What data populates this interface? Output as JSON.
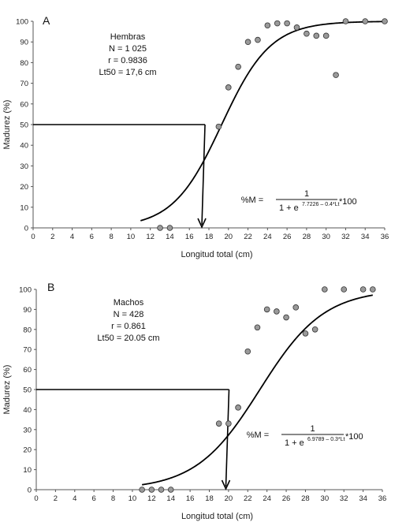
{
  "chart_data": [
    {
      "type": "scatter",
      "panel": "A",
      "xlabel": "Longitud total (cm)",
      "ylabel": "Madurez (%)",
      "xlim": [
        0,
        36
      ],
      "ylim": [
        0,
        100
      ],
      "xticks": [
        0,
        2,
        4,
        6,
        8,
        10,
        12,
        14,
        16,
        18,
        20,
        22,
        24,
        26,
        28,
        30,
        32,
        34,
        36
      ],
      "yticks": [
        0,
        10,
        20,
        30,
        40,
        50,
        60,
        70,
        80,
        90,
        100
      ],
      "stats": [
        "Hembras",
        "N = 1 025",
        "r = 0.9836",
        "Lt50 = 17,6 cm"
      ],
      "formula": {
        "lhs": "%M =",
        "numerator": "1",
        "denominator": "1 + e",
        "exponent": "7.7226 – 0.4*Lt",
        "suffix": "*100"
      },
      "curve": {
        "a": 7.7226,
        "b": 0.4,
        "x_start": 11,
        "x_end": 36
      },
      "lt50": 17.6,
      "points": [
        {
          "x": 13,
          "y": 0
        },
        {
          "x": 14,
          "y": 0
        },
        {
          "x": 19,
          "y": 49
        },
        {
          "x": 20,
          "y": 68
        },
        {
          "x": 21,
          "y": 78
        },
        {
          "x": 22,
          "y": 90
        },
        {
          "x": 23,
          "y": 91
        },
        {
          "x": 24,
          "y": 98
        },
        {
          "x": 25,
          "y": 99
        },
        {
          "x": 26,
          "y": 99
        },
        {
          "x": 27,
          "y": 97
        },
        {
          "x": 28,
          "y": 94
        },
        {
          "x": 29,
          "y": 93
        },
        {
          "x": 30,
          "y": 93
        },
        {
          "x": 31,
          "y": 74
        },
        {
          "x": 32,
          "y": 100
        },
        {
          "x": 34,
          "y": 100
        },
        {
          "x": 36,
          "y": 100
        }
      ]
    },
    {
      "type": "scatter",
      "panel": "B",
      "xlabel": "Longitud total (cm)",
      "ylabel": "Madurez (%)",
      "xlim": [
        0,
        36
      ],
      "ylim": [
        0,
        100
      ],
      "xticks": [
        0,
        2,
        4,
        6,
        8,
        10,
        12,
        14,
        16,
        18,
        20,
        22,
        24,
        26,
        28,
        30,
        32,
        34,
        36
      ],
      "yticks": [
        0,
        10,
        20,
        30,
        40,
        50,
        60,
        70,
        80,
        90,
        100
      ],
      "stats": [
        "Machos",
        "N = 428",
        "r = 0.861",
        "Lt50 = 20.05 cm"
      ],
      "formula": {
        "lhs": "%M =",
        "numerator": "1",
        "denominator": "1 + e",
        "exponent": "6.9789 – 0.3*Lt",
        "suffix": "*100"
      },
      "curve": {
        "a": 6.9789,
        "b": 0.3,
        "x_start": 11,
        "x_end": 35
      },
      "lt50": 20.05,
      "points": [
        {
          "x": 11,
          "y": 0
        },
        {
          "x": 12,
          "y": 0
        },
        {
          "x": 13,
          "y": 0
        },
        {
          "x": 14,
          "y": 0
        },
        {
          "x": 19,
          "y": 33
        },
        {
          "x": 20,
          "y": 33
        },
        {
          "x": 21,
          "y": 41
        },
        {
          "x": 22,
          "y": 69
        },
        {
          "x": 23,
          "y": 81
        },
        {
          "x": 24,
          "y": 90
        },
        {
          "x": 25,
          "y": 89
        },
        {
          "x": 26,
          "y": 86
        },
        {
          "x": 27,
          "y": 91
        },
        {
          "x": 28,
          "y": 78
        },
        {
          "x": 29,
          "y": 80
        },
        {
          "x": 30,
          "y": 100
        },
        {
          "x": 32,
          "y": 100
        },
        {
          "x": 34,
          "y": 100
        },
        {
          "x": 35,
          "y": 100
        }
      ]
    }
  ]
}
